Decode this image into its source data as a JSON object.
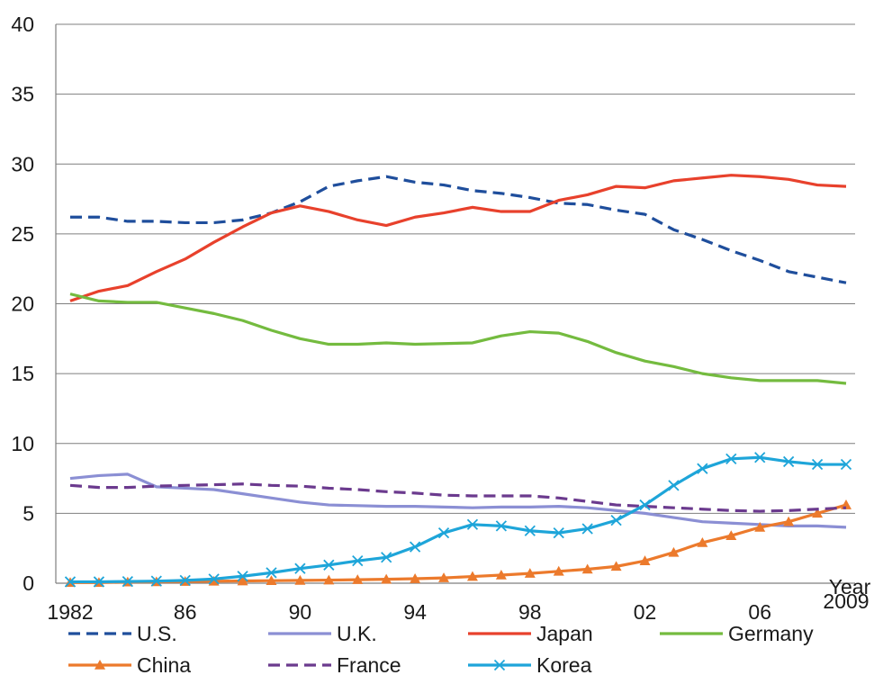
{
  "chart_data": {
    "type": "line",
    "xlabel": "Year",
    "ylabel": "",
    "xlim": [
      1982,
      2009
    ],
    "ylim": [
      0,
      40
    ],
    "yticks": [
      0,
      5,
      10,
      15,
      20,
      25,
      30,
      35,
      40
    ],
    "xtick_values": [
      1982,
      1986,
      1990,
      1994,
      1998,
      2002,
      2006,
      2009
    ],
    "xtick_labels": [
      "1982",
      "86",
      "90",
      "94",
      "98",
      "02",
      "06",
      "2009"
    ],
    "grid": "horizontal",
    "legend_position": "bottom",
    "x": [
      1982,
      1983,
      1984,
      1985,
      1986,
      1987,
      1988,
      1989,
      1990,
      1991,
      1992,
      1993,
      1994,
      1995,
      1996,
      1997,
      1998,
      1999,
      2000,
      2001,
      2002,
      2003,
      2004,
      2005,
      2006,
      2007,
      2008,
      2009
    ],
    "series": [
      {
        "name": "U.S.",
        "color": "#1f4e9c",
        "style": "dashed",
        "marker": "none",
        "values": [
          26.2,
          26.2,
          25.9,
          25.9,
          25.8,
          25.8,
          26.0,
          26.5,
          27.3,
          28.4,
          28.8,
          29.1,
          28.7,
          28.5,
          28.1,
          27.9,
          27.6,
          27.2,
          27.1,
          26.7,
          26.4,
          25.3,
          24.6,
          23.8,
          23.1,
          22.3,
          21.9,
          21.5
        ]
      },
      {
        "name": "U.K.",
        "color": "#8b8fd4",
        "style": "solid",
        "marker": "none",
        "values": [
          7.5,
          7.7,
          7.8,
          6.9,
          6.8,
          6.7,
          6.4,
          6.1,
          5.8,
          5.6,
          5.55,
          5.5,
          5.5,
          5.45,
          5.4,
          5.45,
          5.45,
          5.5,
          5.4,
          5.2,
          5.0,
          4.7,
          4.4,
          4.3,
          4.2,
          4.1,
          4.1,
          4.0
        ]
      },
      {
        "name": "Japan",
        "color": "#e8412c",
        "style": "solid",
        "marker": "none",
        "values": [
          20.2,
          20.9,
          21.3,
          22.3,
          23.2,
          24.4,
          25.5,
          26.5,
          27.0,
          26.6,
          26.0,
          25.6,
          26.2,
          26.5,
          26.9,
          26.6,
          26.6,
          27.4,
          27.8,
          28.4,
          28.3,
          28.8,
          29.0,
          29.2,
          29.1,
          28.9,
          28.5,
          28.4
        ]
      },
      {
        "name": "Germany",
        "color": "#74bb3f",
        "style": "solid",
        "marker": "none",
        "values": [
          20.7,
          20.2,
          20.1,
          20.1,
          19.7,
          19.3,
          18.8,
          18.1,
          17.5,
          17.1,
          17.1,
          17.2,
          17.1,
          17.15,
          17.2,
          17.7,
          18.0,
          17.9,
          17.3,
          16.5,
          15.9,
          15.5,
          15.0,
          14.7,
          14.5,
          14.5,
          14.5,
          14.3
        ]
      },
      {
        "name": "China",
        "color": "#ec7a2c",
        "style": "solid",
        "marker": "triangle",
        "values": [
          0.05,
          0.05,
          0.08,
          0.1,
          0.12,
          0.14,
          0.16,
          0.18,
          0.2,
          0.22,
          0.25,
          0.28,
          0.32,
          0.38,
          0.48,
          0.58,
          0.7,
          0.85,
          1.0,
          1.2,
          1.6,
          2.2,
          2.9,
          3.4,
          4.0,
          4.4,
          5.0,
          5.6
        ]
      },
      {
        "name": "France",
        "color": "#6b3a8e",
        "style": "dashed",
        "marker": "none",
        "values": [
          7.0,
          6.85,
          6.85,
          6.95,
          7.0,
          7.05,
          7.1,
          7.0,
          6.95,
          6.8,
          6.7,
          6.55,
          6.45,
          6.3,
          6.25,
          6.25,
          6.25,
          6.1,
          5.85,
          5.6,
          5.5,
          5.4,
          5.3,
          5.2,
          5.15,
          5.2,
          5.3,
          5.4
        ]
      },
      {
        "name": "Korea",
        "color": "#1ea5d9",
        "style": "solid",
        "marker": "x",
        "values": [
          0.1,
          0.1,
          0.12,
          0.15,
          0.2,
          0.3,
          0.5,
          0.75,
          1.05,
          1.3,
          1.6,
          1.85,
          2.6,
          3.6,
          4.2,
          4.1,
          3.75,
          3.6,
          3.9,
          4.5,
          5.6,
          7.0,
          8.2,
          8.9,
          9.0,
          8.7,
          8.5,
          8.5
        ]
      }
    ]
  }
}
